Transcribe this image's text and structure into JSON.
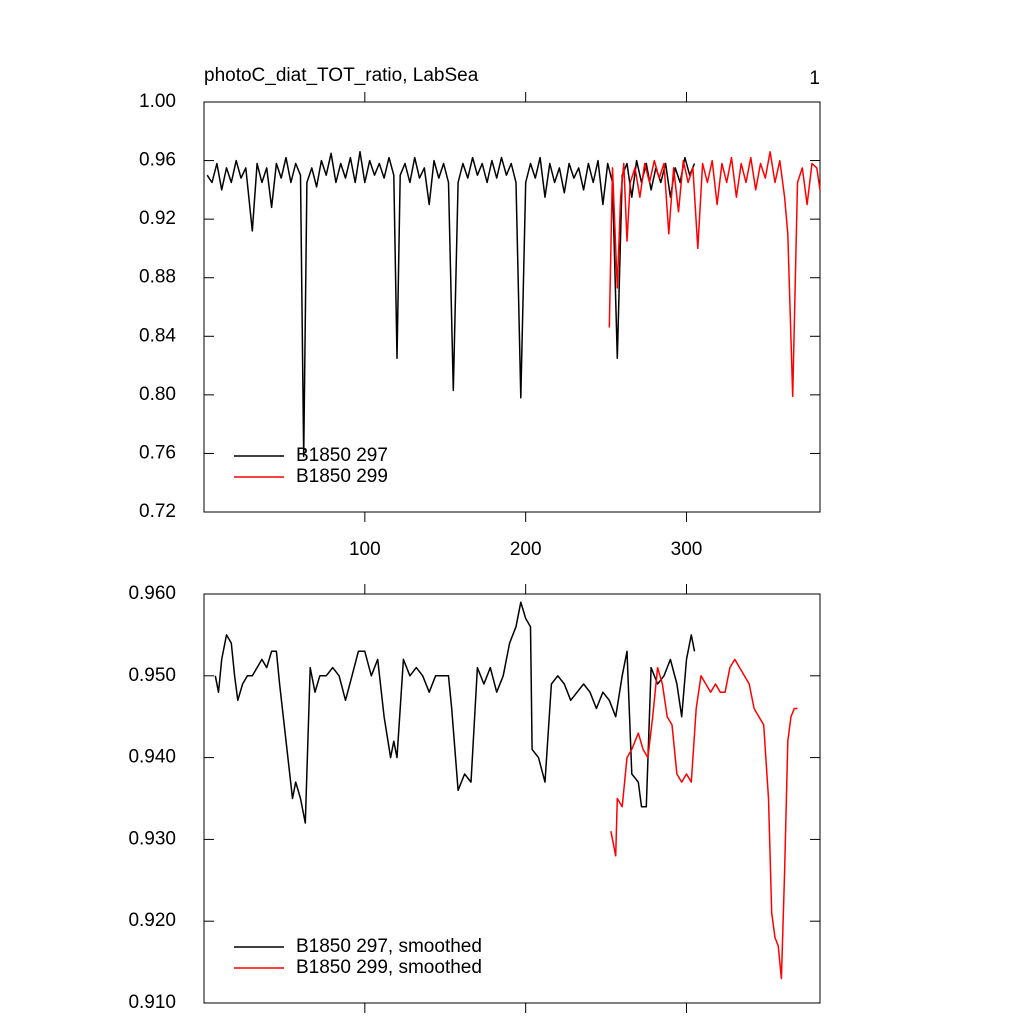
{
  "chart_data": [
    {
      "type": "line",
      "title": "photoC_diat_TOT_ratio, LabSea",
      "panel_label": "1",
      "xlim": [
        0,
        383
      ],
      "xticks": [
        100,
        200,
        300
      ],
      "show_xtick_labels": true,
      "ylim": [
        0.72,
        1.0
      ],
      "yticks": [
        0.72,
        0.76,
        {
          "value": 0.8,
          "label": "0.80"
        },
        0.84,
        0.88,
        0.92,
        0.96,
        {
          "value": 1.0,
          "label": "1.00"
        }
      ],
      "legend": "lower left",
      "series": [
        {
          "name": "B1850 297",
          "color": "#000000",
          "x": [
            2,
            5,
            8,
            11,
            14,
            17,
            20,
            23,
            26,
            30,
            33,
            36,
            39,
            42,
            45,
            48,
            51,
            54,
            57,
            60,
            62,
            64,
            67,
            70,
            73,
            76,
            79,
            82,
            85,
            88,
            91,
            94,
            97,
            100,
            103,
            106,
            109,
            112,
            115,
            118,
            120,
            122,
            125,
            128,
            131,
            134,
            137,
            140,
            143,
            146,
            149,
            152,
            155,
            158,
            161,
            164,
            167,
            170,
            173,
            176,
            179,
            182,
            185,
            188,
            191,
            194,
            197,
            200,
            203,
            206,
            209,
            212,
            215,
            218,
            221,
            224,
            227,
            230,
            233,
            236,
            239,
            242,
            245,
            248,
            251,
            254,
            257,
            260,
            263,
            266,
            269,
            272,
            275,
            278,
            281,
            284,
            287,
            290,
            293,
            296,
            299,
            302,
            305
          ],
          "values": [
            0.95,
            0.945,
            0.958,
            0.94,
            0.955,
            0.945,
            0.96,
            0.948,
            0.955,
            0.912,
            0.958,
            0.945,
            0.955,
            0.928,
            0.958,
            0.948,
            0.962,
            0.945,
            0.958,
            0.95,
            0.758,
            0.945,
            0.955,
            0.942,
            0.96,
            0.95,
            0.965,
            0.945,
            0.958,
            0.948,
            0.962,
            0.945,
            0.966,
            0.945,
            0.96,
            0.95,
            0.958,
            0.948,
            0.962,
            0.95,
            0.825,
            0.95,
            0.958,
            0.945,
            0.962,
            0.948,
            0.955,
            0.93,
            0.96,
            0.948,
            0.958,
            0.945,
            0.803,
            0.945,
            0.958,
            0.948,
            0.962,
            0.95,
            0.958,
            0.945,
            0.96,
            0.948,
            0.962,
            0.95,
            0.958,
            0.945,
            0.798,
            0.945,
            0.958,
            0.948,
            0.962,
            0.935,
            0.958,
            0.945,
            0.955,
            0.938,
            0.958,
            0.948,
            0.955,
            0.94,
            0.958,
            0.945,
            0.96,
            0.93,
            0.958,
            0.945,
            0.825,
            0.95,
            0.958,
            0.935,
            0.96,
            0.945,
            0.958,
            0.94,
            0.955,
            0.945,
            0.958,
            0.935,
            0.955,
            0.945,
            0.962,
            0.95,
            0.958
          ]
        },
        {
          "name": "B1850 299",
          "color": "#ff0000",
          "x": [
            252,
            254,
            257,
            259,
            261,
            263,
            265,
            268,
            271,
            274,
            277,
            280,
            283,
            286,
            289,
            292,
            295,
            298,
            301,
            304,
            307,
            310,
            313,
            316,
            319,
            322,
            325,
            328,
            331,
            334,
            337,
            340,
            343,
            346,
            349,
            352,
            355,
            358,
            361,
            363,
            366,
            369,
            372,
            375,
            378,
            381,
            383
          ],
          "values": [
            0.846,
            0.955,
            0.873,
            0.935,
            0.958,
            0.905,
            0.945,
            0.955,
            0.935,
            0.958,
            0.945,
            0.96,
            0.948,
            0.958,
            0.91,
            0.955,
            0.925,
            0.96,
            0.945,
            0.955,
            0.9,
            0.958,
            0.945,
            0.96,
            0.93,
            0.958,
            0.945,
            0.962,
            0.935,
            0.958,
            0.945,
            0.962,
            0.94,
            0.958,
            0.948,
            0.966,
            0.945,
            0.96,
            0.935,
            0.91,
            0.799,
            0.945,
            0.955,
            0.93,
            0.958,
            0.955,
            0.94
          ]
        }
      ]
    },
    {
      "type": "line",
      "xlim": [
        0,
        383
      ],
      "xticks": [
        100,
        200,
        300
      ],
      "show_xtick_labels": false,
      "ylim": [
        0.91,
        0.96
      ],
      "yticks": [
        {
          "value": 0.91,
          "label": "0.910"
        },
        {
          "value": 0.92,
          "label": "0.920"
        },
        {
          "value": 0.93,
          "label": "0.930"
        },
        {
          "value": 0.94,
          "label": "0.940"
        },
        {
          "value": 0.95,
          "label": "0.950"
        },
        {
          "value": 0.96,
          "label": "0.960"
        }
      ],
      "legend": "lower left",
      "series": [
        {
          "name": "B1850 297, smoothed",
          "color": "#000000",
          "x": [
            7,
            9,
            11,
            14,
            17,
            19,
            21,
            24,
            27,
            30,
            33,
            36,
            39,
            42,
            45,
            47,
            55,
            57,
            60,
            63,
            66,
            69,
            72,
            76,
            80,
            84,
            88,
            92,
            96,
            100,
            104,
            108,
            112,
            116,
            118,
            120,
            124,
            128,
            132,
            136,
            140,
            144,
            148,
            152,
            154,
            158,
            162,
            166,
            170,
            174,
            178,
            182,
            186,
            190,
            194,
            197,
            200,
            203,
            204,
            208,
            212,
            216,
            220,
            224,
            228,
            232,
            236,
            240,
            244,
            248,
            252,
            256,
            260,
            263,
            266,
            270,
            272,
            275,
            278,
            282,
            286,
            290,
            294,
            297,
            300,
            303,
            305
          ],
          "values": [
            0.95,
            0.948,
            0.952,
            0.955,
            0.954,
            0.95,
            0.947,
            0.949,
            0.95,
            0.95,
            0.951,
            0.952,
            0.951,
            0.953,
            0.953,
            0.949,
            0.935,
            0.937,
            0.935,
            0.932,
            0.951,
            0.948,
            0.95,
            0.95,
            0.951,
            0.95,
            0.947,
            0.95,
            0.953,
            0.953,
            0.95,
            0.952,
            0.945,
            0.94,
            0.942,
            0.94,
            0.952,
            0.95,
            0.951,
            0.95,
            0.948,
            0.95,
            0.95,
            0.95,
            0.946,
            0.936,
            0.938,
            0.937,
            0.951,
            0.949,
            0.951,
            0.948,
            0.95,
            0.954,
            0.956,
            0.959,
            0.957,
            0.956,
            0.941,
            0.94,
            0.937,
            0.949,
            0.95,
            0.949,
            0.947,
            0.948,
            0.949,
            0.948,
            0.946,
            0.948,
            0.947,
            0.945,
            0.95,
            0.953,
            0.938,
            0.937,
            0.934,
            0.934,
            0.951,
            0.949,
            0.95,
            0.952,
            0.949,
            0.945,
            0.952,
            0.955,
            0.953
          ]
        },
        {
          "name": "B1850 299, smoothed",
          "color": "#ff0000",
          "x": [
            253,
            256,
            257,
            260,
            263,
            266,
            270,
            273,
            276,
            279,
            282,
            285,
            288,
            291,
            294,
            297,
            300,
            303,
            306,
            309,
            312,
            315,
            318,
            321,
            324,
            327,
            330,
            333,
            336,
            339,
            342,
            345,
            348,
            351,
            353,
            355,
            357,
            359,
            361,
            363,
            365,
            367,
            369
          ],
          "values": [
            0.931,
            0.928,
            0.935,
            0.934,
            0.94,
            0.941,
            0.943,
            0.941,
            0.94,
            0.945,
            0.951,
            0.949,
            0.945,
            0.944,
            0.938,
            0.937,
            0.938,
            0.937,
            0.946,
            0.95,
            0.949,
            0.948,
            0.949,
            0.948,
            0.948,
            0.951,
            0.952,
            0.951,
            0.95,
            0.949,
            0.946,
            0.945,
            0.944,
            0.935,
            0.921,
            0.918,
            0.917,
            0.913,
            0.926,
            0.942,
            0.945,
            0.946,
            0.946
          ]
        }
      ]
    }
  ]
}
